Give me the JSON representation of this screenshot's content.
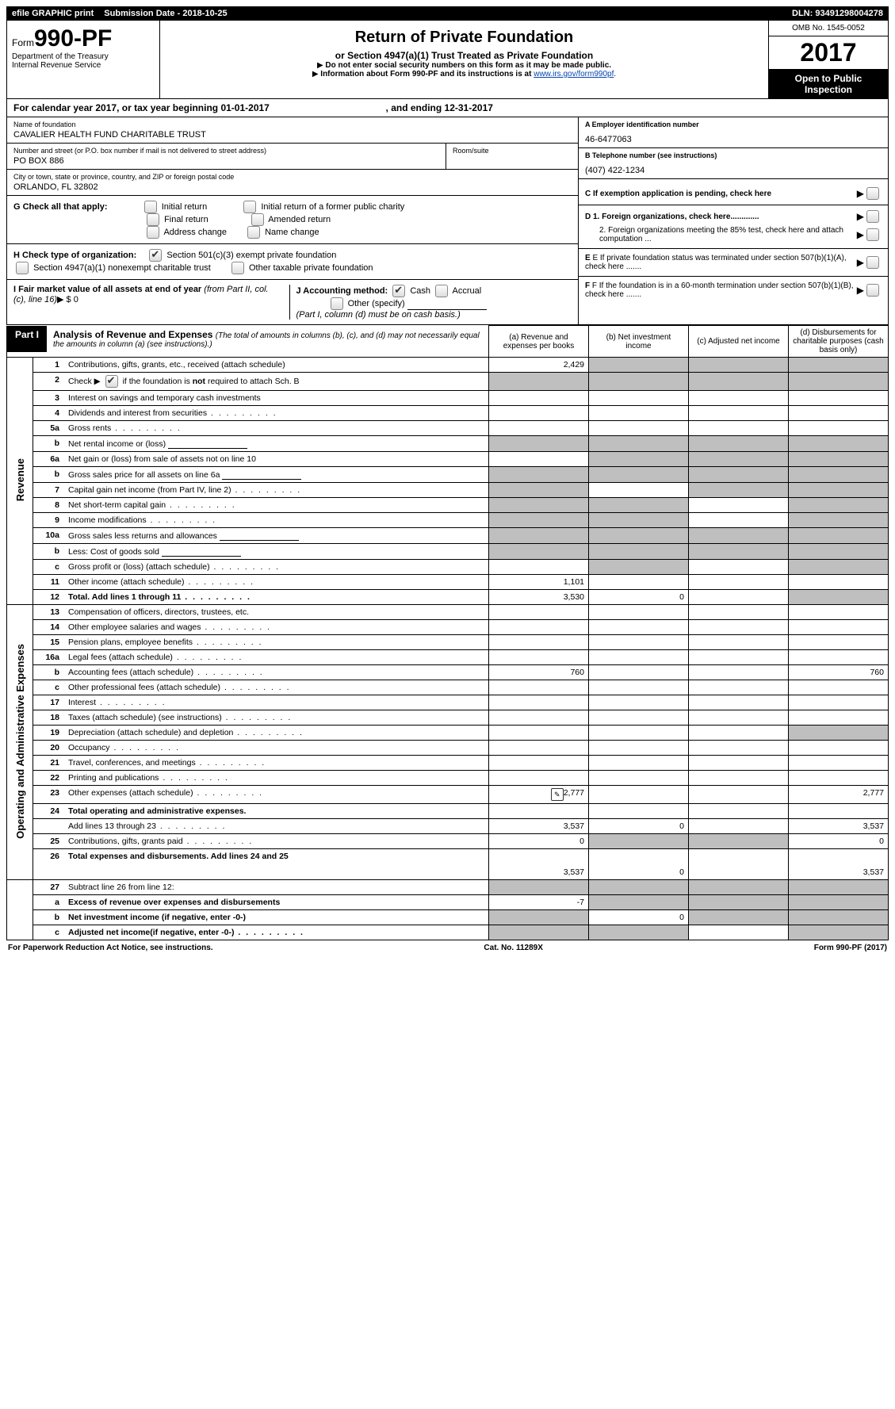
{
  "topbar": {
    "efile": "efile GRAPHIC print",
    "submission_label": "Submission Date - ",
    "submission_date": "2018-10-25",
    "dln_label": "DLN: ",
    "dln": "93491298004278"
  },
  "header": {
    "form_prefix": "Form",
    "form_number": "990-PF",
    "dept": "Department of the Treasury",
    "irs": "Internal Revenue Service",
    "title": "Return of Private Foundation",
    "subtitle": "or Section 4947(a)(1) Trust Treated as Private Foundation",
    "warn1": "Do not enter social security numbers on this form as it may be made public.",
    "warn2_pre": "Information about Form 990-PF and its instructions is at ",
    "warn2_link": "www.irs.gov/form990pf",
    "omb": "OMB No. 1545-0052",
    "year": "2017",
    "open": "Open to Public Inspection"
  },
  "calendar": {
    "text_pre": "For calendar year 2017, or tax year beginning ",
    "begin": "01-01-2017",
    "mid": " , and ending ",
    "end": "12-31-2017"
  },
  "foundation": {
    "name_label": "Name of foundation",
    "name": "CAVALIER HEALTH FUND CHARITABLE TRUST",
    "addr_label": "Number and street (or P.O. box number if mail is not delivered to street address)",
    "addr": "PO BOX 886",
    "room_label": "Room/suite",
    "city_label": "City or town, state or province, country, and ZIP or foreign postal code",
    "city": "ORLANDO, FL  32802"
  },
  "right_box": {
    "a_label": "A Employer identification number",
    "a_val": "46-6477063",
    "b_label": "B Telephone number (see instructions)",
    "b_val": "(407) 422-1234",
    "c_label": "C  If exemption application is pending, check here",
    "d1": "D 1. Foreign organizations, check here.............",
    "d2": "2. Foreign organizations meeting the 85% test, check here and attach computation ...",
    "e": "E  If private foundation status was terminated under section 507(b)(1)(A), check here .......",
    "f": "F  If the foundation is in a 60-month termination under section 507(b)(1)(B), check here ......."
  },
  "section_g": {
    "label": "G Check all that apply:",
    "opts": [
      "Initial return",
      "Initial return of a former public charity",
      "Final return",
      "Amended return",
      "Address change",
      "Name change"
    ]
  },
  "section_h": {
    "label": "H Check type of organization:",
    "o1": "Section 501(c)(3) exempt private foundation",
    "o2": "Section 4947(a)(1) nonexempt charitable trust",
    "o3": "Other taxable private foundation"
  },
  "section_i": {
    "label": "I Fair market value of all assets at end of year ",
    "label2": "(from Part II, col. (c), line 16)",
    "val": "$  0"
  },
  "section_j": {
    "label": "J Accounting method:",
    "o1": "Cash",
    "o2": "Accrual",
    "o3": "Other (specify)",
    "note": "(Part I, column (d) must be on cash basis.)"
  },
  "part1": {
    "label": "Part I",
    "title": "Analysis of Revenue and Expenses ",
    "sub": "(The total of amounts in columns (b), (c), and (d) may not necessarily equal the amounts in column (a) (see instructions).)",
    "cols": {
      "a": "(a)     Revenue and expenses per books",
      "b": "(b)     Net investment income",
      "c": "(c)     Adjusted net income",
      "d": "(d)     Disbursements for charitable purposes (cash basis only)"
    }
  },
  "side_labels": {
    "revenue": "Revenue",
    "expenses": "Operating and Administrative Expenses"
  },
  "rows": [
    {
      "n": "1",
      "desc": "Contributions, gifts, grants, etc., received (attach schedule)",
      "a": "2,429",
      "shaded": [
        "b",
        "c",
        "d"
      ]
    },
    {
      "n": "2",
      "desc": "Check ▶ ☑ if the foundation is not required to attach Sch. B",
      "checkbox": true,
      "shaded": [
        "a",
        "b",
        "c",
        "d"
      ]
    },
    {
      "n": "3",
      "desc": "Interest on savings and temporary cash investments"
    },
    {
      "n": "4",
      "desc": "Dividends and interest from securities",
      "dots": true
    },
    {
      "n": "5a",
      "desc": "Gross rents",
      "dots": true
    },
    {
      "n": "b",
      "desc": "Net rental income or (loss)",
      "inline_input": true,
      "shaded": [
        "a",
        "b",
        "c",
        "d"
      ]
    },
    {
      "n": "6a",
      "desc": "Net gain or (loss) from sale of assets not on line 10",
      "shaded": [
        "b",
        "c",
        "d"
      ]
    },
    {
      "n": "b",
      "desc": "Gross sales price for all assets on line 6a",
      "inline_input": true,
      "shaded": [
        "a",
        "b",
        "c",
        "d"
      ]
    },
    {
      "n": "7",
      "desc": "Capital gain net income (from Part IV, line 2)",
      "dots": true,
      "shaded": [
        "a",
        "c",
        "d"
      ]
    },
    {
      "n": "8",
      "desc": "Net short-term capital gain",
      "dots": true,
      "shaded": [
        "a",
        "b",
        "d"
      ]
    },
    {
      "n": "9",
      "desc": "Income modifications",
      "dots": true,
      "shaded": [
        "a",
        "b",
        "d"
      ]
    },
    {
      "n": "10a",
      "desc": "Gross sales less returns and allowances",
      "inline_input": true,
      "shaded": [
        "a",
        "b",
        "c",
        "d"
      ]
    },
    {
      "n": "b",
      "desc": "Less: Cost of goods sold",
      "dots": true,
      "inline_input": true,
      "shaded": [
        "a",
        "b",
        "c",
        "d"
      ]
    },
    {
      "n": "c",
      "desc": "Gross profit or (loss) (attach schedule)",
      "dots": true,
      "shaded": [
        "b",
        "d"
      ]
    },
    {
      "n": "11",
      "desc": "Other income (attach schedule)",
      "dots": true,
      "a": "1,101"
    },
    {
      "n": "12",
      "desc": "Total. Add lines 1 through 11",
      "dots": true,
      "bold": true,
      "a": "3,530",
      "b": "0",
      "shaded": [
        "d"
      ]
    }
  ],
  "exp_rows": [
    {
      "n": "13",
      "desc": "Compensation of officers, directors, trustees, etc."
    },
    {
      "n": "14",
      "desc": "Other employee salaries and wages",
      "dots": true
    },
    {
      "n": "15",
      "desc": "Pension plans, employee benefits",
      "dots": true
    },
    {
      "n": "16a",
      "desc": "Legal fees (attach schedule)",
      "dots": true
    },
    {
      "n": "b",
      "desc": "Accounting fees (attach schedule)",
      "dots": true,
      "a": "760",
      "d": "760"
    },
    {
      "n": "c",
      "desc": "Other professional fees (attach schedule)",
      "dots": true
    },
    {
      "n": "17",
      "desc": "Interest",
      "dots": true
    },
    {
      "n": "18",
      "desc": "Taxes (attach schedule) (see instructions)",
      "dots": true
    },
    {
      "n": "19",
      "desc": "Depreciation (attach schedule) and depletion",
      "dots": true,
      "shaded": [
        "d"
      ]
    },
    {
      "n": "20",
      "desc": "Occupancy",
      "dots": true
    },
    {
      "n": "21",
      "desc": "Travel, conferences, and meetings",
      "dots": true
    },
    {
      "n": "22",
      "desc": "Printing and publications",
      "dots": true
    },
    {
      "n": "23",
      "desc": "Other expenses (attach schedule)",
      "dots": true,
      "icon": true,
      "a": "2,777",
      "d": "2,777"
    },
    {
      "n": "24",
      "desc": "Total operating and administrative expenses.",
      "bold": true
    },
    {
      "n": "",
      "desc": "Add lines 13 through 23",
      "dots": true,
      "a": "3,537",
      "b": "0",
      "d": "3,537"
    },
    {
      "n": "25",
      "desc": "Contributions, gifts, grants paid",
      "dots": true,
      "a": "0",
      "shaded": [
        "b",
        "c"
      ],
      "d": "0"
    },
    {
      "n": "26",
      "desc": "Total expenses and disbursements. Add lines 24 and 25",
      "bold": true,
      "a": "3,537",
      "b": "0",
      "d": "3,537",
      "tall": true
    }
  ],
  "bottom_rows": [
    {
      "n": "27",
      "desc": "Subtract line 26 from line 12:",
      "shaded": [
        "a",
        "b",
        "c",
        "d"
      ]
    },
    {
      "n": "a",
      "desc": "Excess of revenue over expenses and disbursements",
      "bold": true,
      "a": "-7",
      "shaded": [
        "b",
        "c",
        "d"
      ]
    },
    {
      "n": "b",
      "desc": "Net investment income (if negative, enter -0-)",
      "bold": true,
      "b": "0",
      "shaded": [
        "a",
        "c",
        "d"
      ]
    },
    {
      "n": "c",
      "desc": "Adjusted net income(if negative, enter -0-)",
      "bold": true,
      "dots": true,
      "shaded": [
        "a",
        "b",
        "d"
      ]
    }
  ],
  "footer": {
    "left": "For Paperwork Reduction Act Notice, see instructions.",
    "mid": "Cat. No. 11289X",
    "right": "Form 990-PF (2017)"
  }
}
